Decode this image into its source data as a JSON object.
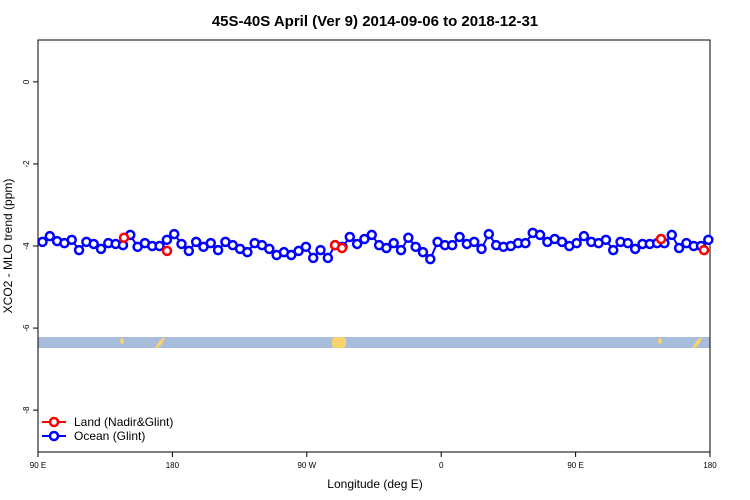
{
  "chart_data": {
    "type": "line",
    "title": "45S-40S April (Ver 9)   2014-09-06 to 2018-12-31",
    "x_label": "Longitude (deg E)",
    "y_label": "XCO2 - MLO trend (ppm)",
    "xlim": [
      90,
      540
    ],
    "xticks": [
      {
        "value": 90,
        "label": "90 E"
      },
      {
        "value": 180,
        "label": "180"
      },
      {
        "value": 270,
        "label": "90 W"
      },
      {
        "value": 360,
        "label": "0"
      },
      {
        "value": 450,
        "label": "90 E"
      },
      {
        "value": 540,
        "label": "180"
      }
    ],
    "ylim": [
      -9.02,
      1.02
    ],
    "yticks": [
      0,
      -2,
      -4,
      -6,
      -8
    ],
    "legend": "bottom-left",
    "series": [
      {
        "name": "Land (Nadir&Glint)",
        "color": "#ff0000",
        "connect": false,
        "x": [
          147.6,
          176.4,
          288.9,
          293.6,
          507.2,
          536
        ],
        "values": [
          -3.8,
          -4.12,
          -3.98,
          -4.05,
          -3.83,
          -4.1
        ]
      },
      {
        "name": "Ocean (Glint)",
        "color": "#0000ff",
        "connect": true,
        "x": [
          93,
          97.9,
          102.8,
          107.7,
          112.6,
          117.5,
          122.4,
          127.3,
          132.2,
          137.1,
          142,
          146.9,
          151.8,
          156.7,
          161.6,
          166.5,
          171.4,
          176.3,
          181.2,
          186.1,
          191,
          195.9,
          200.8,
          205.7,
          210.6,
          215.5,
          220.4,
          225.3,
          230.2,
          235.1,
          240,
          244.9,
          249.8,
          254.7,
          259.6,
          264.5,
          269.4,
          274.3,
          279.2,
          284.1,
          289,
          293.9,
          298.8,
          303.7,
          308.6,
          313.5,
          318.4,
          323.3,
          328.2,
          333.1,
          338,
          342.9,
          347.8,
          352.7,
          357.6,
          362.5,
          367.4,
          372.3,
          377.2,
          382.1,
          387,
          391.9,
          396.8,
          401.7,
          406.6,
          411.5,
          416.4,
          421.3,
          426.2,
          431.1,
          436,
          440.9,
          445.8,
          450.7,
          455.6,
          460.5,
          465.4,
          470.3,
          475.2,
          480.1,
          485,
          489.9,
          494.8,
          499.7,
          504.6,
          509.5,
          514.4,
          519.3,
          524.2,
          529.1,
          534,
          538.9
        ],
        "values": [
          -3.9,
          -3.76,
          -3.88,
          -3.93,
          -3.85,
          -4.1,
          -3.9,
          -3.95,
          -4.07,
          -3.93,
          -3.95,
          -3.98,
          -3.73,
          -4.02,
          -3.93,
          -4,
          -4,
          -3.85,
          -3.71,
          -3.95,
          -4.12,
          -3.9,
          -4.02,
          -3.93,
          -4.1,
          -3.9,
          -3.98,
          -4.07,
          -4.15,
          -3.93,
          -3.98,
          -4.07,
          -4.22,
          -4.15,
          -4.22,
          -4.12,
          -4.02,
          -4.29,
          -4.1,
          -4.29,
          -3.98,
          -4.02,
          -3.78,
          -3.95,
          -3.83,
          -3.73,
          -3.98,
          -4.05,
          -3.93,
          -4.1,
          -3.8,
          -4.02,
          -4.15,
          -4.32,
          -3.9,
          -3.98,
          -3.98,
          -3.78,
          -3.95,
          -3.9,
          -4.07,
          -3.71,
          -3.98,
          -4.02,
          -4,
          -3.93,
          -3.93,
          -3.68,
          -3.73,
          -3.9,
          -3.83,
          -3.9,
          -4,
          -3.93,
          -3.76,
          -3.9,
          -3.93,
          -3.85,
          -4.1,
          -3.9,
          -3.93,
          -4.07,
          -3.95,
          -3.95,
          -3.93,
          -3.93,
          -3.73,
          -4.05,
          -3.93,
          -4,
          -4,
          -3.85
        ]
      }
    ]
  }
}
